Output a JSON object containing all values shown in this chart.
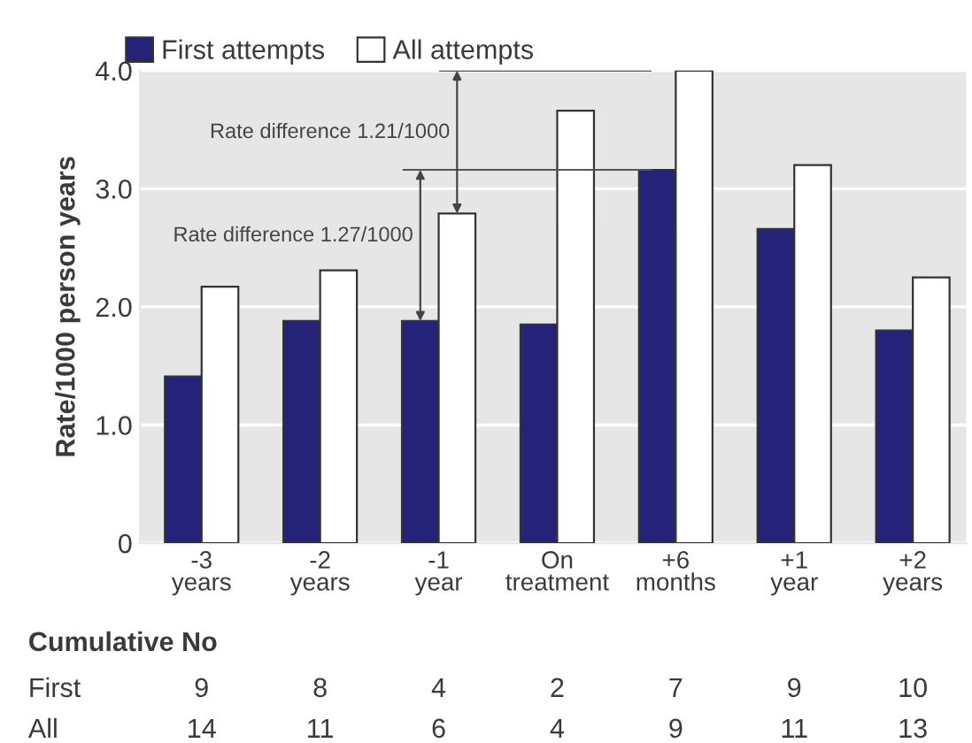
{
  "chart_data": {
    "type": "bar",
    "ylabel": "Rate/1000 person years",
    "categories": [
      "-3\nyears",
      "-2\nyears",
      "-1\nyear",
      "On\ntreatment",
      "+6\nmonths",
      "+1\nyear",
      "+2\nyears"
    ],
    "series": [
      {
        "name": "First attempts",
        "color": "#25227a",
        "values": [
          1.41,
          1.88,
          1.88,
          1.85,
          3.16,
          2.66,
          1.8
        ]
      },
      {
        "name": "All attempts",
        "color": "#ffffff",
        "values": [
          2.17,
          2.31,
          2.79,
          3.66,
          4.0,
          3.2,
          2.25
        ]
      }
    ],
    "ylim": [
      0,
      4.0
    ],
    "yticks": [
      0,
      {
        "value": 1,
        "label": "1.0"
      },
      {
        "value": 2,
        "label": "2.0"
      },
      {
        "value": 3,
        "label": "3.0"
      },
      {
        "value": 4,
        "label": "4.0"
      }
    ],
    "grid": "y",
    "legend": "top left",
    "ref_lines": [
      {
        "axis": "y",
        "value": 3.16,
        "color": "#555555"
      },
      {
        "axis": "y",
        "value": 4.0,
        "color": "#555555"
      }
    ],
    "annotations": [
      "Rate difference 1.27/1000",
      "Rate difference 1.21/1000",
      "Cumulative No",
      "First",
      "9",
      "8",
      "4",
      "2",
      "7",
      "9",
      "10",
      "All",
      "14",
      "11",
      "6",
      "4",
      "9",
      "11",
      "13"
    ]
  }
}
